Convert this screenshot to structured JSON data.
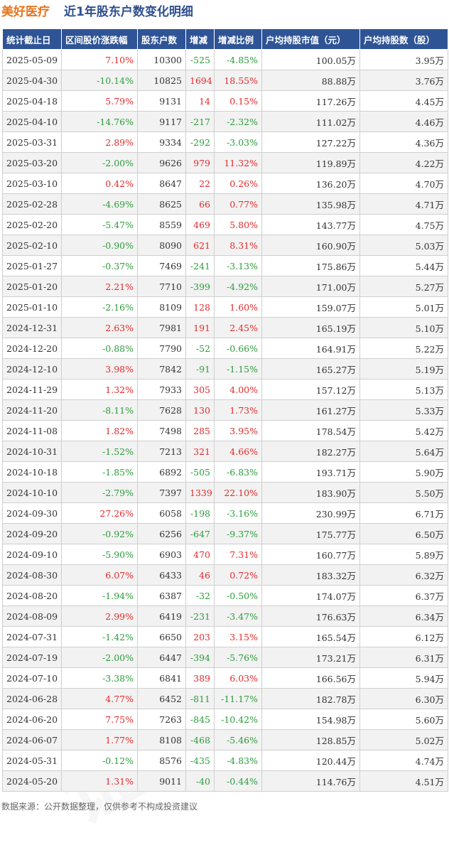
{
  "title": {
    "company": "美好医疗",
    "subtitle": "近1年股东户数变化明细"
  },
  "columns": [
    "统计截止日",
    "区间股价涨跌幅",
    "股东户数",
    "增减",
    "增减比例",
    "户均持股市值（元）",
    "户均持股数（股）"
  ],
  "rows": [
    {
      "date": "2025-05-09",
      "change": "7.10%",
      "holders": "10300",
      "delta": "-525",
      "ratio": "-4.85%",
      "value": "100.05万",
      "shares": "3.95万"
    },
    {
      "date": "2025-04-30",
      "change": "-10.14%",
      "holders": "10825",
      "delta": "1694",
      "ratio": "18.55%",
      "value": "88.88万",
      "shares": "3.76万"
    },
    {
      "date": "2025-04-18",
      "change": "5.79%",
      "holders": "9131",
      "delta": "14",
      "ratio": "0.15%",
      "value": "117.26万",
      "shares": "4.45万"
    },
    {
      "date": "2025-04-10",
      "change": "-14.76%",
      "holders": "9117",
      "delta": "-217",
      "ratio": "-2.32%",
      "value": "111.02万",
      "shares": "4.46万"
    },
    {
      "date": "2025-03-31",
      "change": "2.89%",
      "holders": "9334",
      "delta": "-292",
      "ratio": "-3.03%",
      "value": "127.22万",
      "shares": "4.36万"
    },
    {
      "date": "2025-03-20",
      "change": "-2.00%",
      "holders": "9626",
      "delta": "979",
      "ratio": "11.32%",
      "value": "119.89万",
      "shares": "4.22万"
    },
    {
      "date": "2025-03-10",
      "change": "0.42%",
      "holders": "8647",
      "delta": "22",
      "ratio": "0.26%",
      "value": "136.20万",
      "shares": "4.70万"
    },
    {
      "date": "2025-02-28",
      "change": "-4.69%",
      "holders": "8625",
      "delta": "66",
      "ratio": "0.77%",
      "value": "135.98万",
      "shares": "4.71万"
    },
    {
      "date": "2025-02-20",
      "change": "-5.47%",
      "holders": "8559",
      "delta": "469",
      "ratio": "5.80%",
      "value": "143.77万",
      "shares": "4.75万"
    },
    {
      "date": "2025-02-10",
      "change": "-0.90%",
      "holders": "8090",
      "delta": "621",
      "ratio": "8.31%",
      "value": "160.90万",
      "shares": "5.03万"
    },
    {
      "date": "2025-01-27",
      "change": "-0.37%",
      "holders": "7469",
      "delta": "-241",
      "ratio": "-3.13%",
      "value": "175.86万",
      "shares": "5.44万"
    },
    {
      "date": "2025-01-20",
      "change": "2.21%",
      "holders": "7710",
      "delta": "-399",
      "ratio": "-4.92%",
      "value": "171.00万",
      "shares": "5.27万"
    },
    {
      "date": "2025-01-10",
      "change": "-2.16%",
      "holders": "8109",
      "delta": "128",
      "ratio": "1.60%",
      "value": "159.07万",
      "shares": "5.01万"
    },
    {
      "date": "2024-12-31",
      "change": "2.63%",
      "holders": "7981",
      "delta": "191",
      "ratio": "2.45%",
      "value": "165.19万",
      "shares": "5.10万"
    },
    {
      "date": "2024-12-20",
      "change": "-0.88%",
      "holders": "7790",
      "delta": "-52",
      "ratio": "-0.66%",
      "value": "164.91万",
      "shares": "5.22万"
    },
    {
      "date": "2024-12-10",
      "change": "3.98%",
      "holders": "7842",
      "delta": "-91",
      "ratio": "-1.15%",
      "value": "165.27万",
      "shares": "5.19万"
    },
    {
      "date": "2024-11-29",
      "change": "1.32%",
      "holders": "7933",
      "delta": "305",
      "ratio": "4.00%",
      "value": "157.12万",
      "shares": "5.13万"
    },
    {
      "date": "2024-11-20",
      "change": "-8.11%",
      "holders": "7628",
      "delta": "130",
      "ratio": "1.73%",
      "value": "161.27万",
      "shares": "5.33万"
    },
    {
      "date": "2024-11-08",
      "change": "1.82%",
      "holders": "7498",
      "delta": "285",
      "ratio": "3.95%",
      "value": "178.54万",
      "shares": "5.42万"
    },
    {
      "date": "2024-10-31",
      "change": "-1.52%",
      "holders": "7213",
      "delta": "321",
      "ratio": "4.66%",
      "value": "182.27万",
      "shares": "5.64万"
    },
    {
      "date": "2024-10-18",
      "change": "-1.85%",
      "holders": "6892",
      "delta": "-505",
      "ratio": "-6.83%",
      "value": "193.71万",
      "shares": "5.90万"
    },
    {
      "date": "2024-10-10",
      "change": "-2.79%",
      "holders": "7397",
      "delta": "1339",
      "ratio": "22.10%",
      "value": "183.90万",
      "shares": "5.50万"
    },
    {
      "date": "2024-09-30",
      "change": "27.26%",
      "holders": "6058",
      "delta": "-198",
      "ratio": "-3.16%",
      "value": "230.99万",
      "shares": "6.71万"
    },
    {
      "date": "2024-09-20",
      "change": "-0.92%",
      "holders": "6256",
      "delta": "-647",
      "ratio": "-9.37%",
      "value": "175.77万",
      "shares": "6.50万"
    },
    {
      "date": "2024-09-10",
      "change": "-5.90%",
      "holders": "6903",
      "delta": "470",
      "ratio": "7.31%",
      "value": "160.77万",
      "shares": "5.89万"
    },
    {
      "date": "2024-08-30",
      "change": "6.07%",
      "holders": "6433",
      "delta": "46",
      "ratio": "0.72%",
      "value": "183.32万",
      "shares": "6.32万"
    },
    {
      "date": "2024-08-20",
      "change": "-1.94%",
      "holders": "6387",
      "delta": "-32",
      "ratio": "-0.50%",
      "value": "174.07万",
      "shares": "6.37万"
    },
    {
      "date": "2024-08-09",
      "change": "2.99%",
      "holders": "6419",
      "delta": "-231",
      "ratio": "-3.47%",
      "value": "176.63万",
      "shares": "6.34万"
    },
    {
      "date": "2024-07-31",
      "change": "-1.42%",
      "holders": "6650",
      "delta": "203",
      "ratio": "3.15%",
      "value": "165.54万",
      "shares": "6.12万"
    },
    {
      "date": "2024-07-19",
      "change": "-2.00%",
      "holders": "6447",
      "delta": "-394",
      "ratio": "-5.76%",
      "value": "173.21万",
      "shares": "6.31万"
    },
    {
      "date": "2024-07-10",
      "change": "-3.38%",
      "holders": "6841",
      "delta": "389",
      "ratio": "6.03%",
      "value": "166.56万",
      "shares": "5.94万"
    },
    {
      "date": "2024-06-28",
      "change": "4.77%",
      "holders": "6452",
      "delta": "-811",
      "ratio": "-11.17%",
      "value": "182.78万",
      "shares": "6.30万"
    },
    {
      "date": "2024-06-20",
      "change": "7.75%",
      "holders": "7263",
      "delta": "-845",
      "ratio": "-10.42%",
      "value": "154.98万",
      "shares": "5.60万"
    },
    {
      "date": "2024-06-07",
      "change": "1.77%",
      "holders": "8108",
      "delta": "-468",
      "ratio": "-5.46%",
      "value": "128.85万",
      "shares": "5.02万"
    },
    {
      "date": "2024-05-31",
      "change": "-0.12%",
      "holders": "8576",
      "delta": "-435",
      "ratio": "-4.83%",
      "value": "120.44万",
      "shares": "4.74万"
    },
    {
      "date": "2024-05-20",
      "change": "1.31%",
      "holders": "9011",
      "delta": "-40",
      "ratio": "-0.44%",
      "value": "114.76万",
      "shares": "4.51万"
    }
  ],
  "footer": "数据来源：公开数据整理，仅供参考不构成投资建议",
  "watermark": "证券之星",
  "colors": {
    "header_bg": "#2f5496",
    "up": "#e5292b",
    "down": "#2a9d3a",
    "company": "#e8741a",
    "subtitle": "#2f4f8f"
  }
}
